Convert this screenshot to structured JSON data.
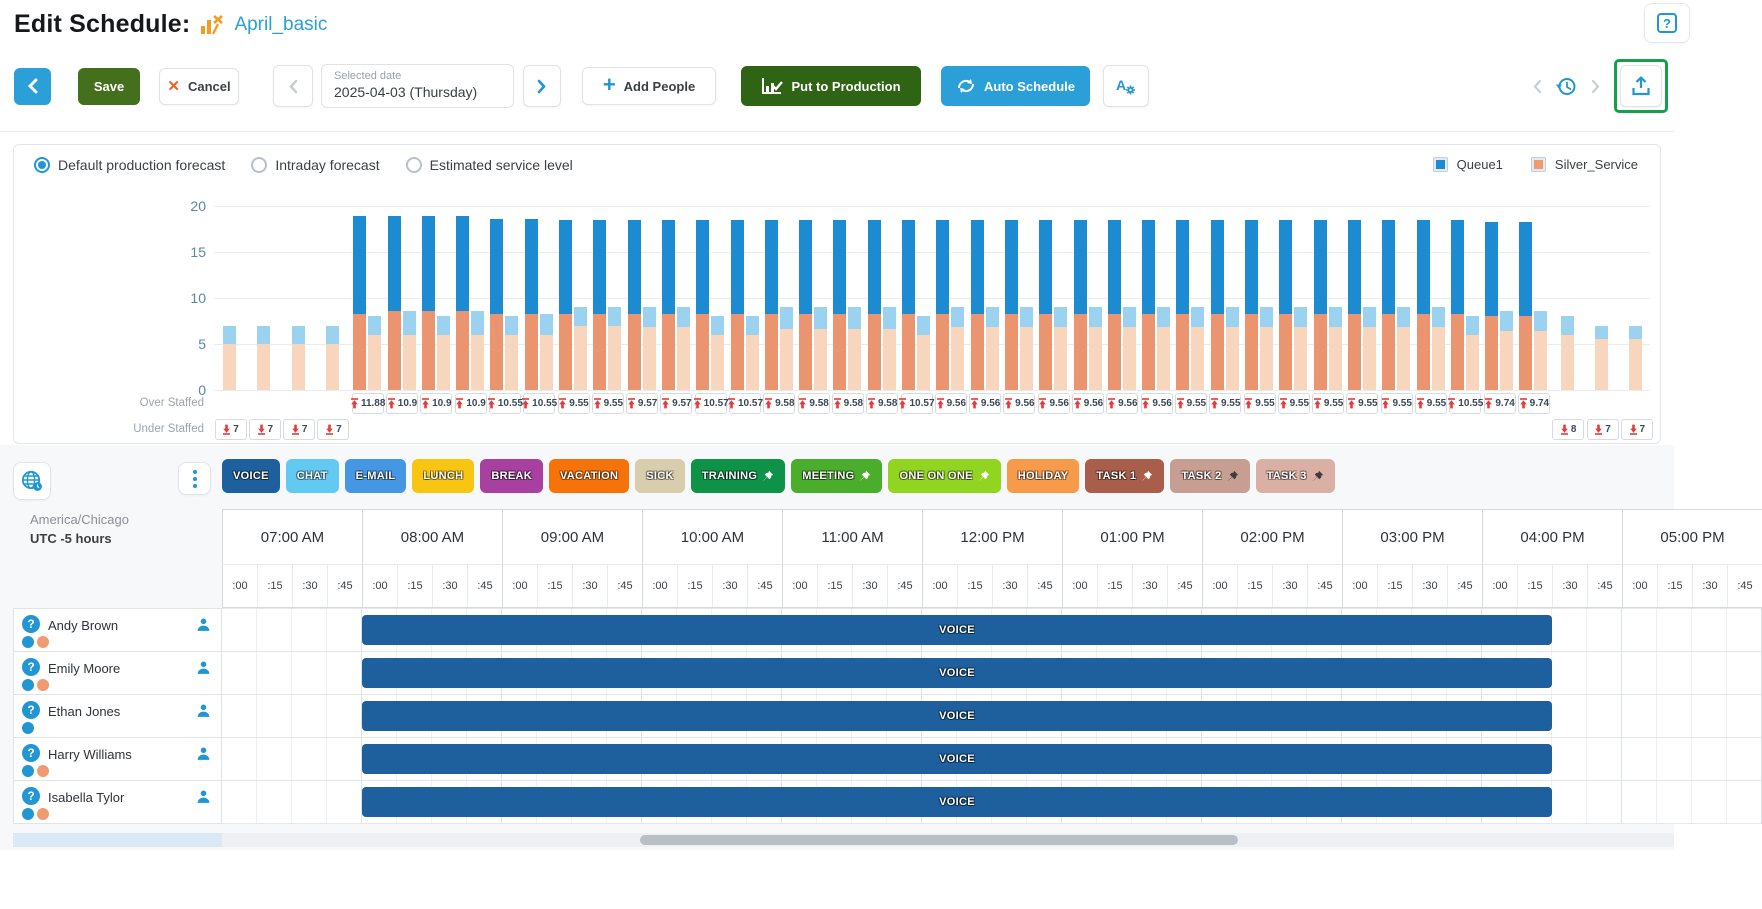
{
  "page": {
    "title": "Edit Schedule:",
    "schedule_name": "April_basic"
  },
  "toolbar": {
    "save": "Save",
    "cancel": "Cancel",
    "selected_date_label": "Selected date",
    "selected_date_value": "2025-04-03 (Thursday)",
    "add_people": "Add People",
    "put_to_production": "Put to Production",
    "auto_schedule": "Auto Schedule"
  },
  "forecast": {
    "options": [
      {
        "label": "Default production forecast",
        "selected": true
      },
      {
        "label": "Intraday forecast",
        "selected": false
      },
      {
        "label": "Estimated service level",
        "selected": false
      }
    ]
  },
  "legend": {
    "items": [
      {
        "label": "Queue1",
        "color": "#1d8bd1"
      },
      {
        "label": "Silver_Service",
        "color": "#ef9a71"
      }
    ]
  },
  "chart_data": {
    "type": "bar",
    "ylim": [
      0,
      20
    ],
    "yticks": [
      0,
      5,
      10,
      15,
      20
    ],
    "grid": true,
    "legend_position": "top-right",
    "row_labels": {
      "over": "Over Staffed",
      "under": "Under Staffed"
    },
    "series_legend": [
      "Queue1",
      "Silver_Service"
    ],
    "colors": {
      "scheduled_queue1": "#1d8bd1",
      "scheduled_silver": "#eb9470",
      "forecast_queue1": "#9ad2f0",
      "forecast_silver": "#f8d5bd"
    },
    "over_staffed_values": [
      "11.88",
      "10.9",
      "10.9",
      "10.9",
      "10.55",
      "10.55",
      "9.55",
      "9.55",
      "9.57",
      "9.57",
      "10.57",
      "10.57",
      "9.58",
      "9.58",
      "9.58",
      "9.58",
      "10.57",
      "9.56",
      "9.56",
      "9.56",
      "9.56",
      "9.56",
      "9.56",
      "9.56",
      "9.55",
      "9.55",
      "9.55",
      "9.55",
      "9.55",
      "9.55",
      "9.55",
      "9.55",
      "10.55",
      "9.74",
      "9.74"
    ],
    "under_staffed_values_left": [
      "7",
      "7",
      "7",
      "7"
    ],
    "under_staffed_values_right": [
      "8",
      "7",
      "7"
    ],
    "intervals": [
      {
        "s_q1": 0,
        "s_ss": 0,
        "f_q1": 7,
        "f_ss": 5,
        "under": "7"
      },
      {
        "s_q1": 0,
        "s_ss": 0,
        "f_q1": 7,
        "f_ss": 5,
        "under": "7"
      },
      {
        "s_q1": 0,
        "s_ss": 0,
        "f_q1": 7,
        "f_ss": 5,
        "under": "7"
      },
      {
        "s_q1": 0,
        "s_ss": 0,
        "f_q1": 7,
        "f_ss": 5,
        "under": "7"
      },
      {
        "s_q1": 18.9,
        "s_ss": 8.3,
        "f_q1": 8,
        "f_ss": 6,
        "over": "11.88"
      },
      {
        "s_q1": 18.9,
        "s_ss": 8.6,
        "f_q1": 8.6,
        "f_ss": 6,
        "over": "10.9"
      },
      {
        "s_q1": 18.9,
        "s_ss": 8.6,
        "f_q1": 8,
        "f_ss": 6,
        "over": "10.9"
      },
      {
        "s_q1": 18.9,
        "s_ss": 8.6,
        "f_q1": 8.6,
        "f_ss": 6,
        "over": "10.9"
      },
      {
        "s_q1": 18.6,
        "s_ss": 8.3,
        "f_q1": 8,
        "f_ss": 6,
        "over": "10.55"
      },
      {
        "s_q1": 18.6,
        "s_ss": 8.3,
        "f_q1": 8.3,
        "f_ss": 6,
        "over": "10.55"
      },
      {
        "s_q1": 18.5,
        "s_ss": 8.3,
        "f_q1": 9,
        "f_ss": 7,
        "over": "9.55"
      },
      {
        "s_q1": 18.5,
        "s_ss": 8.3,
        "f_q1": 9,
        "f_ss": 7,
        "over": "9.55"
      },
      {
        "s_q1": 18.5,
        "s_ss": 8.3,
        "f_q1": 9,
        "f_ss": 6.8,
        "over": "9.57"
      },
      {
        "s_q1": 18.5,
        "s_ss": 8.3,
        "f_q1": 9,
        "f_ss": 6.8,
        "over": "9.57"
      },
      {
        "s_q1": 18.5,
        "s_ss": 8.3,
        "f_q1": 8,
        "f_ss": 6,
        "over": "10.57"
      },
      {
        "s_q1": 18.5,
        "s_ss": 8.3,
        "f_q1": 8,
        "f_ss": 6,
        "over": "10.57"
      },
      {
        "s_q1": 18.5,
        "s_ss": 8.3,
        "f_q1": 9,
        "f_ss": 6.6,
        "over": "9.58"
      },
      {
        "s_q1": 18.5,
        "s_ss": 8.3,
        "f_q1": 9,
        "f_ss": 6.6,
        "over": "9.58"
      },
      {
        "s_q1": 18.5,
        "s_ss": 8.3,
        "f_q1": 9,
        "f_ss": 6.6,
        "over": "9.58"
      },
      {
        "s_q1": 18.5,
        "s_ss": 8.3,
        "f_q1": 9,
        "f_ss": 6.6,
        "over": "9.58"
      },
      {
        "s_q1": 18.5,
        "s_ss": 8.3,
        "f_q1": 8,
        "f_ss": 6,
        "over": "10.57"
      },
      {
        "s_q1": 18.5,
        "s_ss": 8.3,
        "f_q1": 9,
        "f_ss": 6.8,
        "over": "9.56"
      },
      {
        "s_q1": 18.5,
        "s_ss": 8.3,
        "f_q1": 9,
        "f_ss": 6.8,
        "over": "9.56"
      },
      {
        "s_q1": 18.5,
        "s_ss": 8.3,
        "f_q1": 9,
        "f_ss": 6.8,
        "over": "9.56"
      },
      {
        "s_q1": 18.5,
        "s_ss": 8.3,
        "f_q1": 9,
        "f_ss": 6.8,
        "over": "9.56"
      },
      {
        "s_q1": 18.5,
        "s_ss": 8.3,
        "f_q1": 9,
        "f_ss": 6.8,
        "over": "9.56"
      },
      {
        "s_q1": 18.5,
        "s_ss": 8.3,
        "f_q1": 9,
        "f_ss": 6.8,
        "over": "9.56"
      },
      {
        "s_q1": 18.5,
        "s_ss": 8.3,
        "f_q1": 9,
        "f_ss": 6.8,
        "over": "9.56"
      },
      {
        "s_q1": 18.5,
        "s_ss": 8.3,
        "f_q1": 9,
        "f_ss": 6.8,
        "over": "9.55"
      },
      {
        "s_q1": 18.5,
        "s_ss": 8.3,
        "f_q1": 9,
        "f_ss": 6.8,
        "over": "9.55"
      },
      {
        "s_q1": 18.5,
        "s_ss": 8.3,
        "f_q1": 9,
        "f_ss": 6.8,
        "over": "9.55"
      },
      {
        "s_q1": 18.5,
        "s_ss": 8.3,
        "f_q1": 9,
        "f_ss": 6.8,
        "over": "9.55"
      },
      {
        "s_q1": 18.5,
        "s_ss": 8.3,
        "f_q1": 9,
        "f_ss": 6.8,
        "over": "9.55"
      },
      {
        "s_q1": 18.5,
        "s_ss": 8.3,
        "f_q1": 9,
        "f_ss": 6.8,
        "over": "9.55"
      },
      {
        "s_q1": 18.5,
        "s_ss": 8.3,
        "f_q1": 9,
        "f_ss": 6.8,
        "over": "9.55"
      },
      {
        "s_q1": 18.5,
        "s_ss": 8.3,
        "f_q1": 9,
        "f_ss": 6.8,
        "over": "9.55"
      },
      {
        "s_q1": 18.5,
        "s_ss": 8.3,
        "f_q1": 8,
        "f_ss": 6,
        "over": "10.55"
      },
      {
        "s_q1": 18.3,
        "s_ss": 8,
        "f_q1": 8.6,
        "f_ss": 6.4,
        "over": "9.74"
      },
      {
        "s_q1": 18.3,
        "s_ss": 8,
        "f_q1": 8.6,
        "f_ss": 6.4,
        "over": "9.74"
      },
      {
        "s_q1": 0,
        "s_ss": 0,
        "f_q1": 8,
        "f_ss": 6,
        "under": "8"
      },
      {
        "s_q1": 0,
        "s_ss": 0,
        "f_q1": 7,
        "f_ss": 5.5,
        "under": "7"
      },
      {
        "s_q1": 0,
        "s_ss": 0,
        "f_q1": 7,
        "f_ss": 5.5,
        "under": "7"
      }
    ]
  },
  "schedule": {
    "timezone_region": "America/Chicago",
    "timezone_offset": "UTC -5 hours",
    "activities": [
      {
        "label": "VOICE",
        "color": "#1e5f9e",
        "pin": false
      },
      {
        "label": "CHAT",
        "color": "#62c9f3",
        "pin": false
      },
      {
        "label": "E-MAIL",
        "color": "#4597e4",
        "pin": false
      },
      {
        "label": "LUNCH",
        "color": "#f9c513",
        "pin": false
      },
      {
        "label": "BREAK",
        "color": "#a8409f",
        "pin": false
      },
      {
        "label": "VACATION",
        "color": "#f77208",
        "pin": false
      },
      {
        "label": "SICK",
        "color": "#d8cdac",
        "pin": false
      },
      {
        "label": "TRAINING",
        "color": "#0d9248",
        "pin": true,
        "pin_color": "#ffffff"
      },
      {
        "label": "MEETING",
        "color": "#4bad2c",
        "pin": true,
        "pin_color": "#ffffff"
      },
      {
        "label": "ONE ON ONE",
        "color": "#92d521",
        "pin": true,
        "pin_color": "#ffffff"
      },
      {
        "label": "HOLIDAY",
        "color": "#f79b4b",
        "pin": false
      },
      {
        "label": "TASK 1",
        "color": "#a95d4b",
        "pin": true,
        "pin_color": "#ffffff"
      },
      {
        "label": "TASK 2",
        "color": "#c89e92",
        "pin": true,
        "pin_color": "#3c3c3c"
      },
      {
        "label": "TASK 3",
        "color": "#dab0a4",
        "pin": true,
        "pin_color": "#3c3c3c"
      }
    ],
    "hours": [
      "07:00 AM",
      "08:00 AM",
      "09:00 AM",
      "10:00 AM",
      "11:00 AM",
      "12:00 PM",
      "01:00 PM",
      "02:00 PM",
      "03:00 PM",
      "04:00 PM",
      "05:00 PM"
    ],
    "quarters": [
      ":00",
      ":15",
      ":30",
      ":45"
    ],
    "employees": [
      {
        "name": "Andy Brown",
        "dots": [
          "#2196d3",
          "#ef9a71"
        ],
        "shift_label": "VOICE",
        "shift_start_quarter": 4,
        "shift_quarters": 34
      },
      {
        "name": "Emily Moore",
        "dots": [
          "#2196d3",
          "#ef9a71"
        ],
        "shift_label": "VOICE",
        "shift_start_quarter": 4,
        "shift_quarters": 34
      },
      {
        "name": "Ethan Jones",
        "dots": [
          "#2196d3"
        ],
        "shift_label": "VOICE",
        "shift_start_quarter": 4,
        "shift_quarters": 34
      },
      {
        "name": "Harry Williams",
        "dots": [
          "#2196d3",
          "#ef9a71"
        ],
        "shift_label": "VOICE",
        "shift_start_quarter": 4,
        "shift_quarters": 34
      },
      {
        "name": "Isabella Tylor",
        "dots": [
          "#2196d3",
          "#ef9a71"
        ],
        "shift_label": "VOICE",
        "shift_start_quarter": 4,
        "shift_quarters": 34
      }
    ]
  }
}
